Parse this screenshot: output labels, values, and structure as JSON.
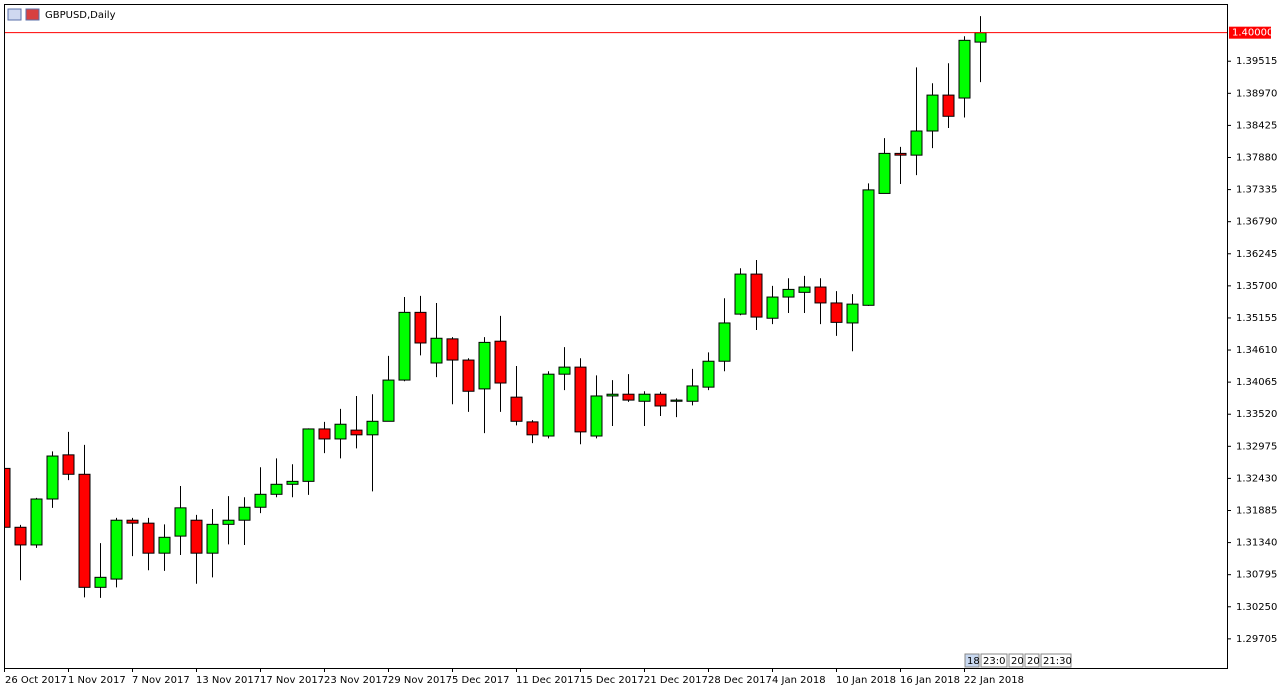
{
  "chart_data": {
    "type": "candlestick",
    "title": "GBPUSD,Daily",
    "categories": [
      "26 Oct 2017",
      null,
      null,
      null,
      "1 Nov 2017",
      null,
      null,
      null,
      "7 Nov 2017",
      null,
      null,
      null,
      "13 Nov 2017",
      null,
      null,
      null,
      "17 Nov 2017",
      null,
      null,
      null,
      "23 Nov 2017",
      null,
      null,
      null,
      "29 Nov 2017",
      null,
      null,
      null,
      "5 Dec 2017",
      null,
      null,
      null,
      "11 Dec 2017",
      null,
      null,
      null,
      "15 Dec 2017",
      null,
      null,
      null,
      "21 Dec 2017",
      null,
      null,
      null,
      "28 Dec 2017",
      null,
      null,
      null,
      "4 Jan 2018",
      null,
      null,
      null,
      "10 Jan 2018",
      null,
      null,
      null,
      "16 Jan 2018",
      null,
      null,
      null,
      "22 Jan 2018",
      null
    ],
    "open": [
      1.326,
      1.316,
      1.313,
      1.3208,
      1.3283,
      1.325,
      1.3058,
      1.3072,
      1.3172,
      1.3167,
      1.3116,
      1.3145,
      1.3172,
      1.3116,
      1.3165,
      1.3172,
      1.3194,
      1.3216,
      1.3233,
      1.3238,
      1.3327,
      1.331,
      1.3325,
      1.3317,
      1.334,
      1.341,
      1.3525,
      1.3439,
      1.348,
      1.3444,
      1.3395,
      1.3476,
      1.3381,
      1.3339,
      1.3315,
      1.342,
      1.3432,
      1.3315,
      1.3383,
      1.3386,
      1.3374,
      1.3386,
      1.3374,
      1.3374,
      1.3398,
      1.3442,
      1.3522,
      1.359,
      1.3515,
      1.3551,
      1.3559,
      1.3568,
      1.3541,
      1.3507,
      1.3537,
      1.3727,
      1.3795,
      1.3792,
      1.3833,
      1.3894,
      1.3889,
      1.3984
    ],
    "high": [
      1.3266,
      1.3164,
      1.321,
      1.3289,
      1.3322,
      1.33,
      1.3133,
      1.3176,
      1.3176,
      1.3176,
      1.3165,
      1.323,
      1.3181,
      1.3191,
      1.3213,
      1.3211,
      1.3262,
      1.3277,
      1.3267,
      1.3328,
      1.3339,
      1.3361,
      1.3383,
      1.3386,
      1.3451,
      1.3551,
      1.3553,
      1.3541,
      1.3483,
      1.3447,
      1.3483,
      1.3519,
      1.3434,
      1.3342,
      1.3425,
      1.3466,
      1.3447,
      1.3418,
      1.341,
      1.342,
      1.3391,
      1.339,
      1.3379,
      1.3429,
      1.3457,
      1.3549,
      1.36,
      1.3614,
      1.357,
      1.3583,
      1.3587,
      1.3583,
      1.3561,
      1.3556,
      1.3744,
      1.3821,
      1.3806,
      1.3941,
      1.3914,
      1.3948,
      1.3994,
      1.4028
    ],
    "low": [
      1.3155,
      1.307,
      1.3125,
      1.3193,
      1.324,
      1.3041,
      1.304,
      1.3058,
      1.3111,
      1.3087,
      1.3086,
      1.3113,
      1.3064,
      1.3075,
      1.3131,
      1.313,
      1.3184,
      1.3211,
      1.3211,
      1.3215,
      1.3286,
      1.3277,
      1.3294,
      1.3221,
      1.334,
      1.3408,
      1.3452,
      1.3415,
      1.3369,
      1.3356,
      1.332,
      1.3356,
      1.3333,
      1.3303,
      1.3311,
      1.3393,
      1.3301,
      1.3311,
      1.3332,
      1.3373,
      1.3332,
      1.3349,
      1.3347,
      1.3367,
      1.3393,
      1.3425,
      1.352,
      1.3495,
      1.3505,
      1.3524,
      1.3524,
      1.3505,
      1.3485,
      1.3459,
      1.3536,
      1.3727,
      1.3743,
      1.3758,
      1.3804,
      1.3838,
      1.3856,
      1.3916
    ],
    "close": [
      1.316,
      1.313,
      1.3208,
      1.3281,
      1.325,
      1.3058,
      1.3075,
      1.3172,
      1.3167,
      1.3116,
      1.3143,
      1.3193,
      1.3116,
      1.3165,
      1.3172,
      1.3194,
      1.3216,
      1.3233,
      1.3238,
      1.3327,
      1.331,
      1.3335,
      1.3317,
      1.334,
      1.341,
      1.3525,
      1.3473,
      1.3481,
      1.3444,
      1.3391,
      1.3474,
      1.3405,
      1.334,
      1.3317,
      1.342,
      1.3432,
      1.3322,
      1.3383,
      1.3386,
      1.3376,
      1.3386,
      1.3366,
      1.3376,
      1.34,
      1.3442,
      1.3507,
      1.359,
      1.3517,
      1.3551,
      1.3564,
      1.3568,
      1.3541,
      1.3508,
      1.3539,
      1.3733,
      1.3795,
      1.3792,
      1.3833,
      1.3894,
      1.3858,
      1.3987,
      1.4
    ],
    "up_color": "#00ff00",
    "down_color": "#ff0000",
    "ylim": [
      1.2921,
      1.4047
    ],
    "yticks": [
      1.39515,
      {
        "value": 1.3897,
        "label": "1.38970"
      },
      1.38425,
      {
        "value": 1.3788,
        "label": "1.37880"
      },
      1.37335,
      {
        "value": 1.3679,
        "label": "1.36790"
      },
      1.36245,
      {
        "value": 1.357,
        "label": "1.35700"
      },
      1.35155,
      {
        "value": 1.3461,
        "label": "1.34610"
      },
      1.34065,
      {
        "value": 1.3352,
        "label": "1.33520"
      },
      1.32975,
      {
        "value": 1.3243,
        "label": "1.32430"
      },
      1.31885,
      {
        "value": 1.3134,
        "label": "1.31340"
      },
      1.30795,
      {
        "value": 1.3025,
        "label": "1.30250"
      },
      1.29705
    ],
    "price_line": {
      "value": 1.4,
      "label": "1.40000",
      "color": "#ff0000"
    }
  },
  "time_scale_labels": [
    "18:",
    "23:0",
    "20",
    "20",
    "21:30"
  ]
}
